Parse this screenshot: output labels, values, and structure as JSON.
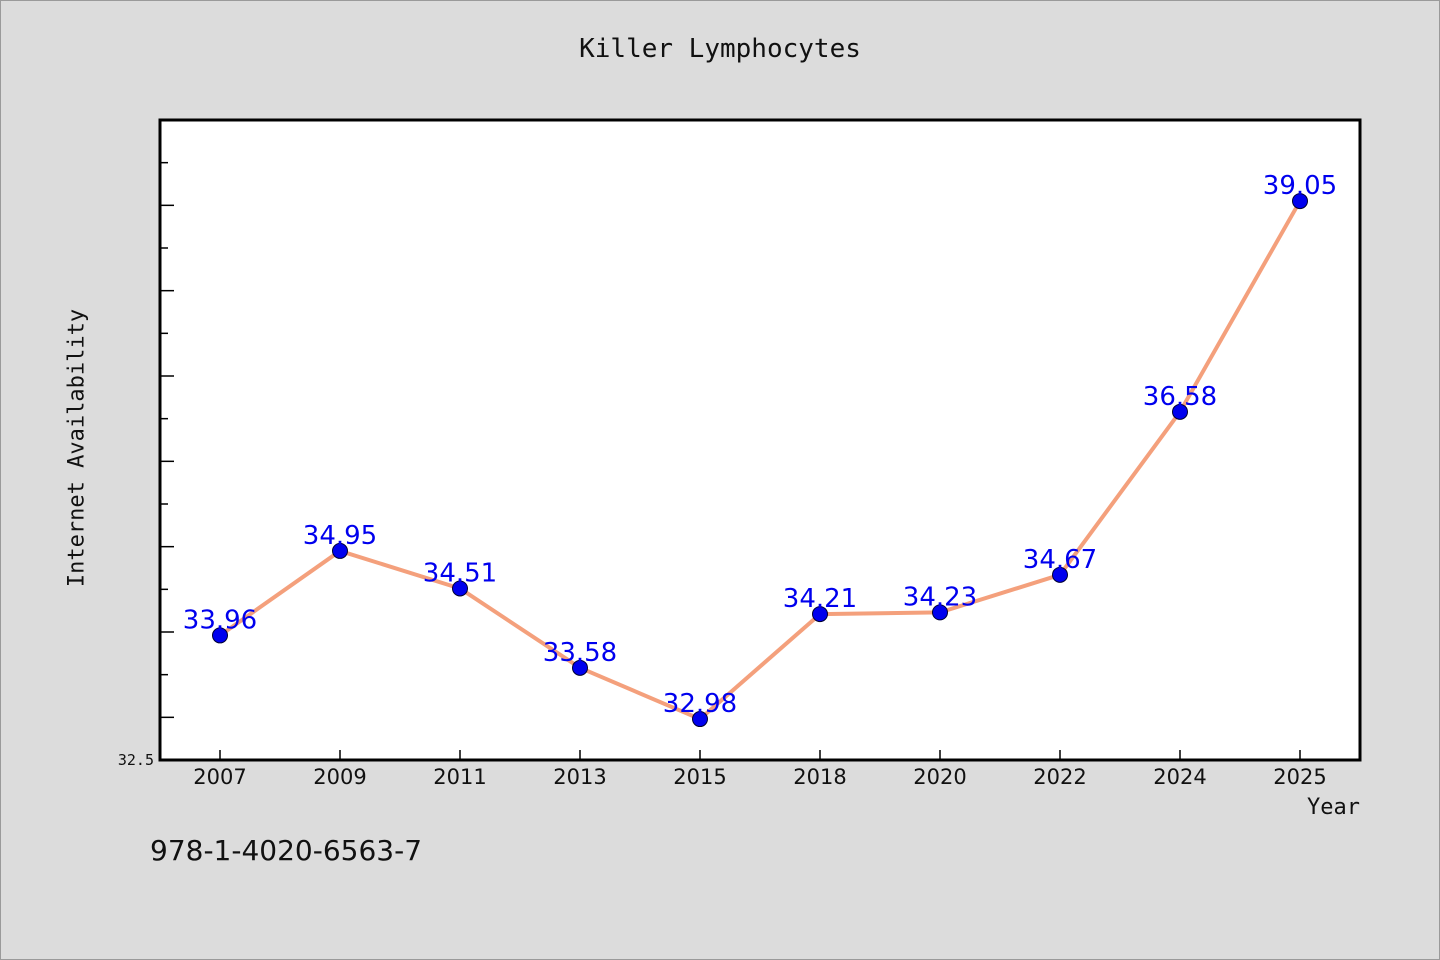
{
  "chart_data": {
    "type": "line",
    "title": "Killer Lymphocytes",
    "xlabel": "Year",
    "ylabel": "Internet Availability",
    "categories": [
      "2007",
      "2009",
      "2011",
      "2013",
      "2015",
      "2018",
      "2020",
      "2022",
      "2024",
      "2025"
    ],
    "series": [
      {
        "values": [
          33.96,
          34.95,
          34.51,
          33.58,
          32.98,
          34.21,
          34.23,
          34.67,
          36.58,
          39.05
        ]
      }
    ],
    "ylim": [
      32.5,
      40.0
    ],
    "y_tick_labels": [
      "32.5"
    ],
    "grid": false,
    "data_labels": true,
    "colors": {
      "line": "#f4a07c",
      "marker": "#0000ee",
      "label": "#0000ee",
      "background": "#dcdcdc",
      "plot_bg": "#ffffff"
    }
  },
  "footnote": "978-1-4020-6563-7"
}
